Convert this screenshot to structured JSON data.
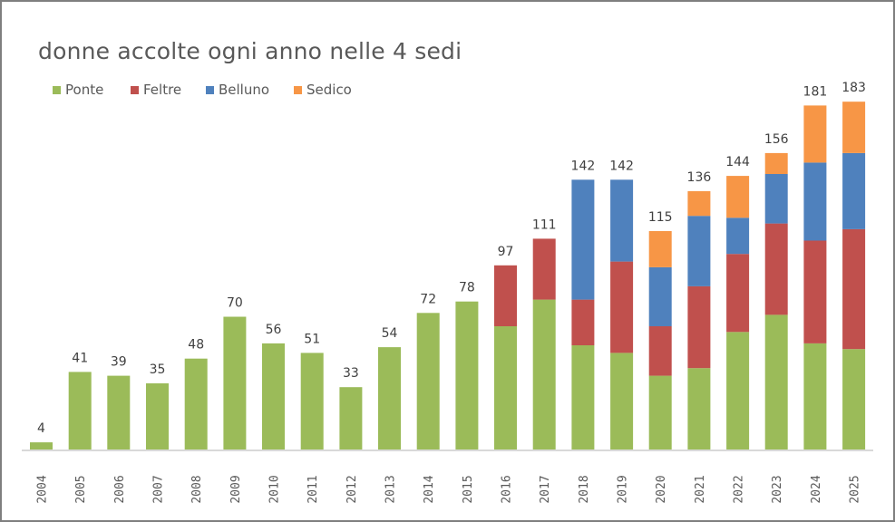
{
  "chart_data": {
    "type": "bar",
    "stacked": true,
    "title": "donne accolte ogni anno nelle 4 sedi",
    "xlabel": "",
    "ylabel": "",
    "ylim": [
      0,
      190
    ],
    "grid": false,
    "legend_position": "top-left",
    "categories": [
      "2004",
      "2005",
      "2006",
      "2007",
      "2008",
      "2009",
      "2010",
      "2011",
      "2012",
      "2013",
      "2014",
      "2015",
      "2016",
      "2017",
      "2018",
      "2019",
      "2020",
      "2021",
      "2022",
      "2023",
      "2024",
      "2025"
    ],
    "series": [
      {
        "name": "Ponte",
        "color": "#9BBB59",
        "values": [
          4,
          41,
          39,
          35,
          48,
          70,
          56,
          51,
          33,
          54,
          72,
          78,
          65,
          79,
          55,
          51,
          39,
          43,
          62,
          71,
          56,
          53
        ]
      },
      {
        "name": "Feltre",
        "color": "#C0504D",
        "values": [
          0,
          0,
          0,
          0,
          0,
          0,
          0,
          0,
          0,
          0,
          0,
          0,
          32,
          32,
          24,
          48,
          26,
          43,
          41,
          48,
          54,
          63
        ]
      },
      {
        "name": "Belluno",
        "color": "#4F81BD",
        "values": [
          0,
          0,
          0,
          0,
          0,
          0,
          0,
          0,
          0,
          0,
          0,
          0,
          0,
          0,
          63,
          43,
          31,
          37,
          19,
          26,
          41,
          40
        ]
      },
      {
        "name": "Sedico",
        "color": "#F79646",
        "values": [
          0,
          0,
          0,
          0,
          0,
          0,
          0,
          0,
          0,
          0,
          0,
          0,
          0,
          0,
          0,
          0,
          19,
          13,
          22,
          11,
          30,
          27
        ]
      }
    ],
    "totals": [
      4,
      41,
      39,
      35,
      48,
      70,
      56,
      51,
      33,
      54,
      72,
      78,
      97,
      111,
      142,
      142,
      115,
      136,
      144,
      156,
      181,
      183
    ]
  }
}
